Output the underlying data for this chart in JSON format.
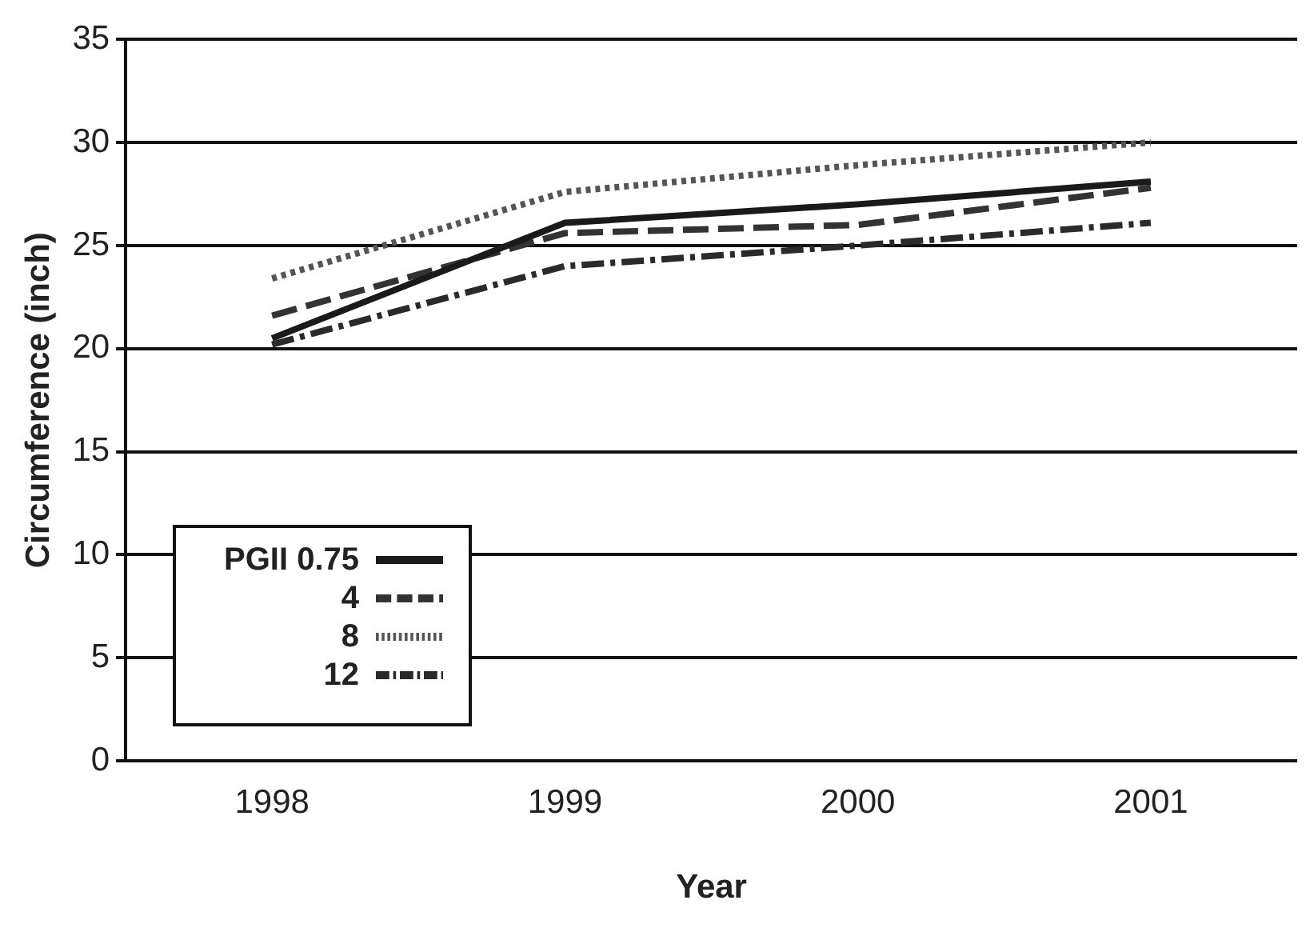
{
  "chart_data": {
    "type": "line",
    "xlabel": "Year",
    "ylabel": "Circumference (inch)",
    "categories": [
      "1998",
      "1999",
      "2000",
      "2001"
    ],
    "series": [
      {
        "name": "PGII 0.75",
        "color": "#1a1a1a",
        "values": [
          20.5,
          26.1,
          27,
          28.1
        ],
        "line_style": "solid"
      },
      {
        "name": "4",
        "color": "#333333",
        "values": [
          21.6,
          25.6,
          26,
          27.8
        ],
        "line_style": "dashed"
      },
      {
        "name": "8",
        "color": "#555555",
        "values": [
          23.4,
          27.6,
          28.9,
          30
        ],
        "line_style": "dotted"
      },
      {
        "name": "12",
        "color": "#2a2a2a",
        "values": [
          20.2,
          24,
          25,
          26.1
        ],
        "line_style": "dashdot"
      }
    ],
    "ylim": [
      0,
      35
    ],
    "yticks": [
      0,
      5,
      10,
      15,
      20,
      25,
      30,
      35
    ],
    "grid": "y",
    "legend": "bottom left",
    "marker": "none"
  }
}
